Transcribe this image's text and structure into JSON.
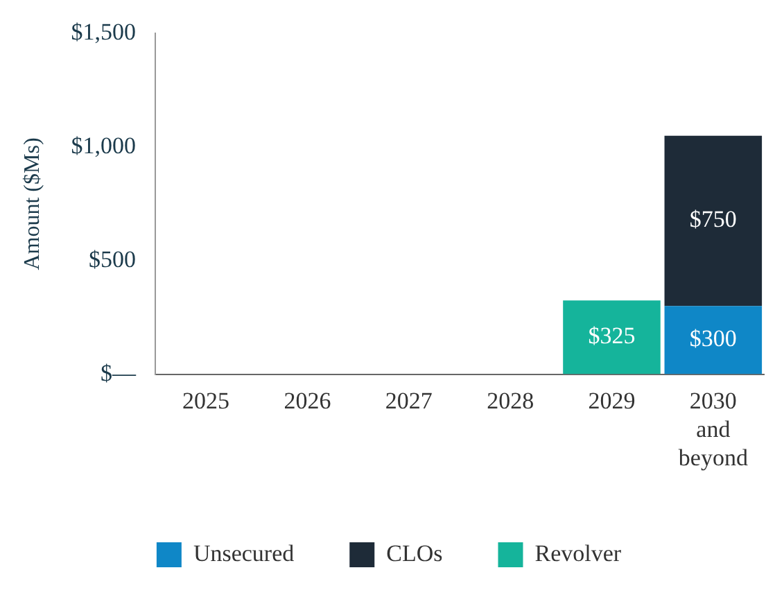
{
  "chart_data": {
    "type": "bar",
    "stacked": true,
    "ylabel": "Amount ($Ms)",
    "categories": [
      "2025",
      "2026",
      "2027",
      "2028",
      "2029",
      "2030 and beyond"
    ],
    "series": [
      {
        "name": "Unsecured",
        "color": "#0f87c7",
        "values": [
          null,
          null,
          null,
          null,
          null,
          300
        ],
        "value_labels": [
          null,
          null,
          null,
          null,
          null,
          "$300"
        ]
      },
      {
        "name": "CLOs",
        "color": "#1e2b38",
        "values": [
          null,
          null,
          null,
          null,
          null,
          750
        ],
        "value_labels": [
          null,
          null,
          null,
          null,
          null,
          "$750"
        ]
      },
      {
        "name": "Revolver",
        "color": "#15b49b",
        "values": [
          null,
          null,
          null,
          null,
          325,
          null
        ],
        "value_labels": [
          null,
          null,
          null,
          null,
          "$325",
          null
        ]
      }
    ],
    "ylim": [
      0,
      1500
    ],
    "yticks": [
      {
        "value": 0,
        "label": "$—"
      },
      {
        "value": 500,
        "label": "$500"
      },
      {
        "value": 1000,
        "label": "$1,000"
      },
      {
        "value": 1500,
        "label": "$1,500"
      }
    ],
    "grid": false,
    "legend": "bottom"
  }
}
